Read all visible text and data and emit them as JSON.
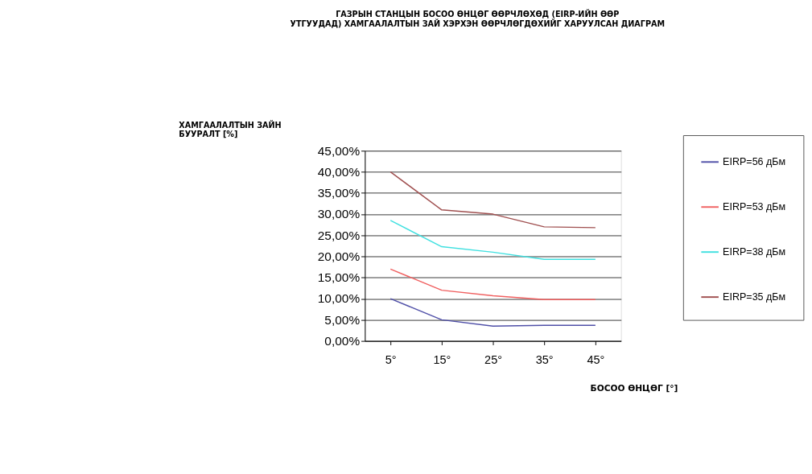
{
  "chart_data": {
    "type": "line",
    "title": "ГАЗРЫН СТАНЦЫН БОСОО ӨНЦӨГ ӨӨРЧЛӨХӨД (EIRP-ИЙН ӨӨР УТГУУДАД) ХАМГААЛАЛТЫН ЗАЙ ХЭРХЭН ӨӨРЧЛӨГДӨХИЙГ ХАРУУЛСАН ДИАГРАМ",
    "xlabel": "БОСОО ӨНЦӨГ [°]",
    "ylabel": "ХАМГААЛАЛТЫН ЗАЙН БУУРАЛТ [%]",
    "categories": [
      "5°",
      "15°",
      "25°",
      "35°",
      "45°"
    ],
    "series": [
      {
        "name": "EIRP=56 дБм",
        "color": "#5050a8",
        "values": [
          10,
          5,
          3.5,
          3.7,
          3.7
        ]
      },
      {
        "name": "EIRP=53 дБм",
        "color": "#f06060",
        "values": [
          17,
          12,
          10.7,
          9.8,
          9.8
        ]
      },
      {
        "name": "EIRP=38 дБм",
        "color": "#40e0e0",
        "values": [
          28.5,
          22.3,
          21,
          19.3,
          19.3
        ]
      },
      {
        "name": "EIRP=35 дБм",
        "color": "#a05050",
        "values": [
          40,
          31,
          30,
          27,
          26.8
        ]
      }
    ],
    "ylim": [
      0,
      45
    ],
    "yticks": [
      {
        "value": 0,
        "label": "0,00%"
      },
      {
        "value": 5,
        "label": "5,00%"
      },
      {
        "value": 10,
        "label": "10,00%"
      },
      {
        "value": 15,
        "label": "15,00%"
      },
      {
        "value": 20,
        "label": "20,00%"
      },
      {
        "value": 25,
        "label": "25,00%"
      },
      {
        "value": 30,
        "label": "30,00%"
      },
      {
        "value": 35,
        "label": "35,00%"
      },
      {
        "value": 40,
        "label": "40,00%"
      },
      {
        "value": 45,
        "label": "45,00%"
      }
    ],
    "grid": "y",
    "legend": "right",
    "marker": "none",
    "line_style": "solid"
  }
}
